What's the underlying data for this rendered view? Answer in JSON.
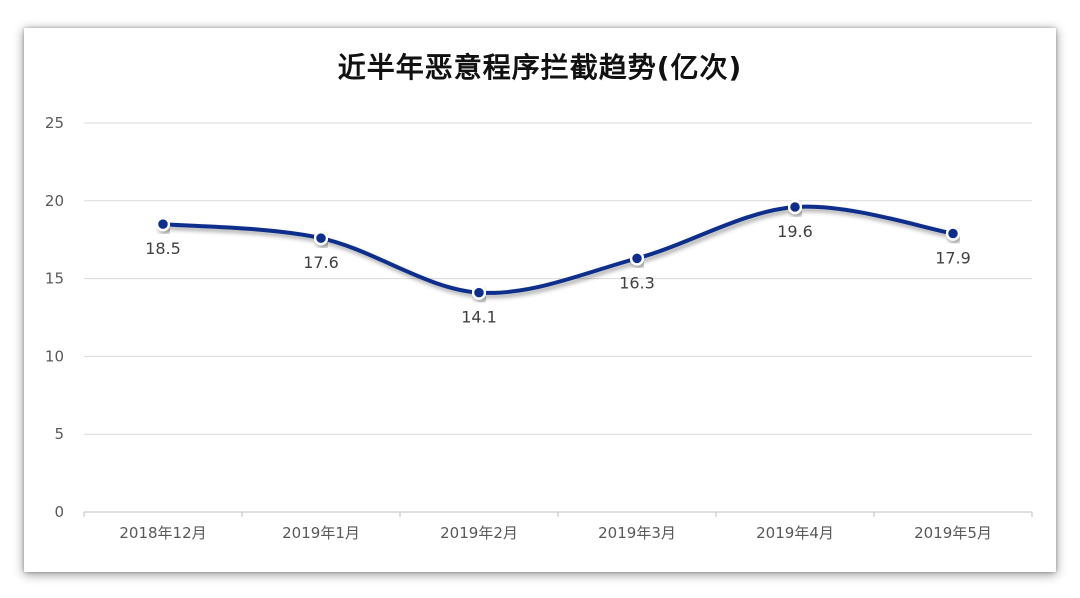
{
  "chart_data": {
    "type": "line",
    "title": "近半年恶意程序拦截趋势(亿次)",
    "xlabel": "",
    "ylabel": "",
    "categories": [
      "2018年12月",
      "2019年1月",
      "2019年2月",
      "2019年3月",
      "2019年4月",
      "2019年5月"
    ],
    "series": [
      {
        "values": [
          18.5,
          17.6,
          14.1,
          16.3,
          19.6,
          17.9
        ]
      }
    ],
    "ylim": [
      0,
      25
    ],
    "yticks": [
      "0",
      "5",
      "10",
      "15",
      "20",
      "25"
    ],
    "grid": true,
    "smooth": true,
    "data_labels": true,
    "colors": {
      "line": "#0f2f8a",
      "marker_fill": "#0f2f8a",
      "marker_stroke": "#ffffff",
      "grid": "#d9d9d9",
      "axis_text": "#595959",
      "label_text": "#404040"
    }
  }
}
